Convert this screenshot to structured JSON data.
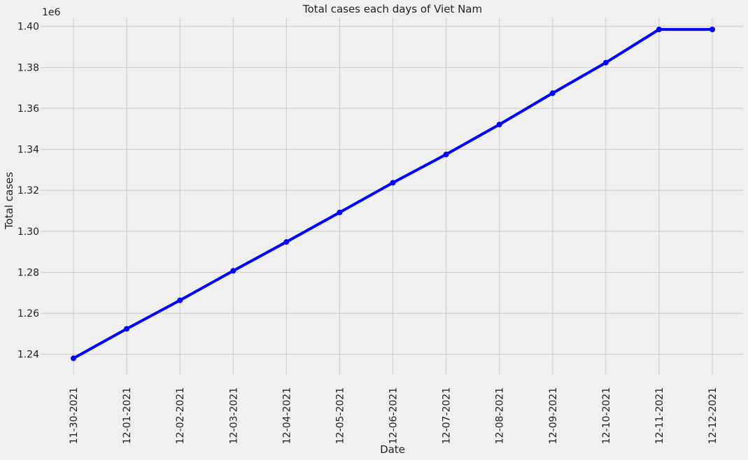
{
  "chart_data": {
    "type": "line",
    "title": "Total cases each days of Viet Nam",
    "xlabel": "Date",
    "ylabel": "Total cases",
    "y_offset_label": "1e6",
    "y_multiplier": 1000000,
    "categories": [
      "11-30-2021",
      "12-01-2021",
      "12-02-2021",
      "12-03-2021",
      "12-04-2021",
      "12-05-2021",
      "12-06-2021",
      "12-07-2021",
      "12-08-2021",
      "12-09-2021",
      "12-10-2021",
      "12-11-2021",
      "12-12-2021"
    ],
    "series": [
      {
        "values": [
          1238000,
          1252400,
          1266300,
          1280700,
          1294800,
          1309200,
          1323700,
          1337500,
          1352100,
          1367400,
          1382300,
          1398500,
          1398500
        ],
        "color": "#0000ff",
        "marker": "circle"
      }
    ],
    "ylim": [
      1230000,
      1404000
    ],
    "yticks": [
      1240000,
      1260000,
      1280000,
      1300000,
      1320000,
      1340000,
      1360000,
      1380000,
      1400000
    ],
    "ytick_labels": [
      "1.24",
      "1.26",
      "1.28",
      "1.30",
      "1.32",
      "1.34",
      "1.36",
      "1.38",
      "1.40"
    ],
    "grid": true,
    "background": "#f0f0f0",
    "grid_color": "#cbcbcb"
  }
}
